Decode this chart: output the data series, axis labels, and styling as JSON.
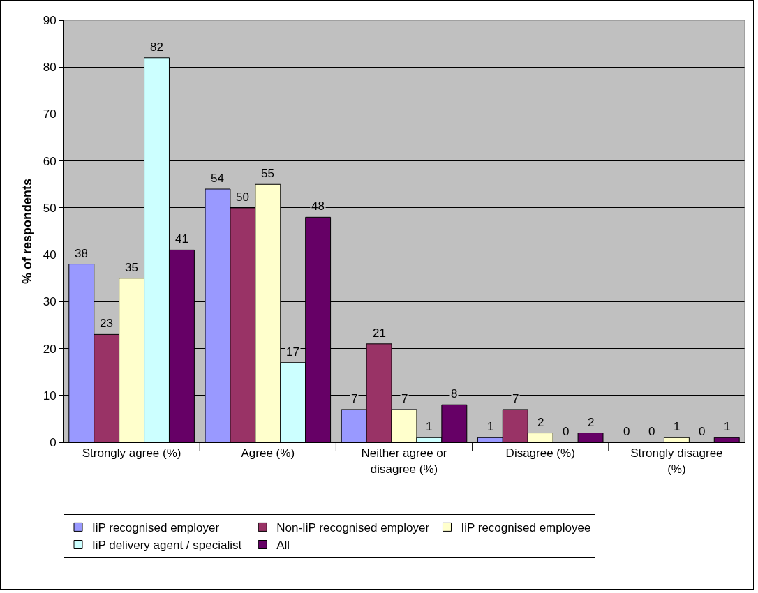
{
  "chart_data": {
    "type": "bar",
    "ylabel": "% of respondents",
    "categories": [
      "Strongly agree (%)",
      "Agree (%)",
      "Neither agree or disagree (%)",
      "Disagree (%)",
      "Strongly disagree (%)"
    ],
    "series": [
      {
        "name": "IiP recognised employer",
        "color": "#9999ff",
        "values": [
          38,
          54,
          7,
          1,
          0
        ]
      },
      {
        "name": "Non-IiP recognised employer",
        "color": "#993366",
        "values": [
          23,
          50,
          21,
          7,
          0
        ]
      },
      {
        "name": "IiP recognised employee",
        "color": "#ffffcc",
        "values": [
          35,
          55,
          7,
          2,
          1
        ]
      },
      {
        "name": "IiP delivery agent / specialist",
        "color": "#ccffff",
        "values": [
          82,
          17,
          1,
          0,
          0
        ]
      },
      {
        "name": "All",
        "color": "#660066",
        "values": [
          41,
          48,
          8,
          2,
          1
        ]
      }
    ],
    "ylim": [
      0,
      90
    ],
    "yticks": [
      0,
      10,
      20,
      30,
      40,
      50,
      60,
      70,
      80,
      90
    ],
    "grid": "y",
    "legend": "bottom",
    "data_labels": true
  }
}
